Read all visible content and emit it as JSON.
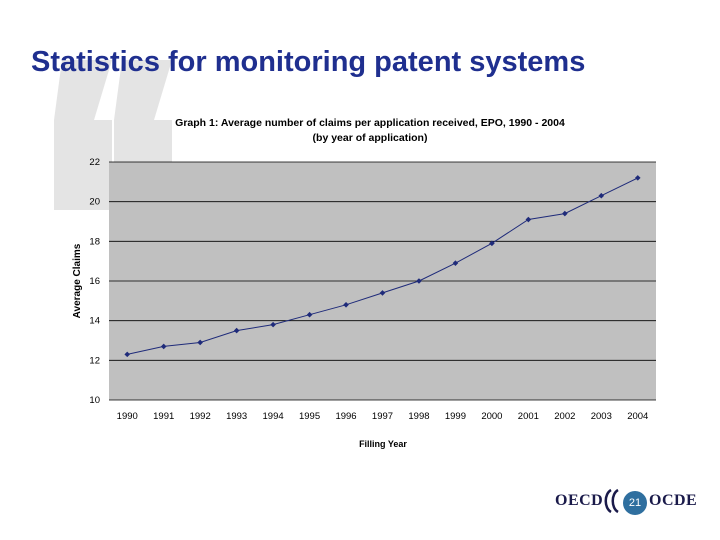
{
  "slide": {
    "title": "Statistics for monitoring patent systems",
    "page_number": "21",
    "logo_left": "OECD",
    "logo_right": "OCDE"
  },
  "colors": {
    "title": "#1f2f8f",
    "plot_background": "#c0c0c0",
    "series_line": "#1f2b7a",
    "quote_mark": "#e4e4e4"
  },
  "chart_data": {
    "type": "line",
    "title": "Graph 1: Average number of claims per application received, EPO, 1990 - 2004",
    "subtitle": "(by year of application)",
    "xlabel": "Filling Year",
    "ylabel": "Average Claims",
    "categories": [
      "1990",
      "1991",
      "1992",
      "1993",
      "1994",
      "1995",
      "1996",
      "1997",
      "1998",
      "1999",
      "2000",
      "2001",
      "2002",
      "2003",
      "2004"
    ],
    "series": [
      {
        "name": "Average claims",
        "values": [
          12.3,
          12.7,
          12.9,
          13.5,
          13.8,
          14.3,
          14.8,
          15.4,
          16.0,
          16.9,
          17.9,
          19.1,
          19.4,
          20.3,
          21.2
        ]
      }
    ],
    "ylim": [
      10,
      22
    ],
    "yticks": [
      10,
      12,
      14,
      16,
      18,
      20,
      22
    ],
    "grid": true,
    "legend": "none"
  }
}
